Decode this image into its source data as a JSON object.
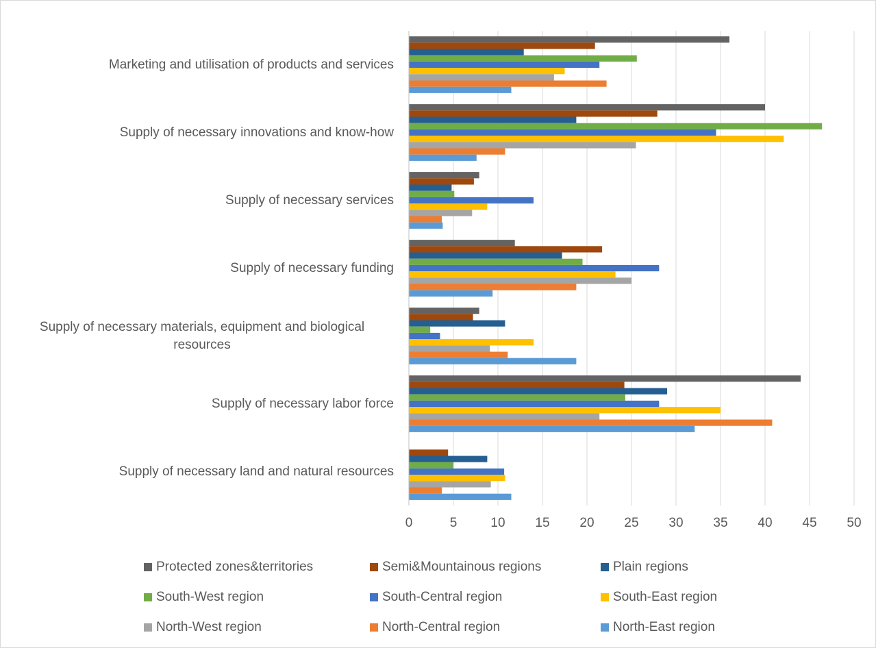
{
  "chart_data": {
    "type": "bar",
    "orientation": "horizontal",
    "categories": [
      "Marketing and utilisation of products and services",
      "Supply of necessary innovations and know-how",
      "Supply of necessary services",
      "Supply of necessary funding",
      "Supply of necessary materials, equipment and biological resources",
      "Supply of necessary labor force",
      "Supply of necessary land and natural resources"
    ],
    "series": [
      {
        "name": "Protected zones&territories",
        "color": "#636363",
        "values": [
          36,
          40,
          7.9,
          11.9,
          7.9,
          44,
          0
        ]
      },
      {
        "name": "Semi&Mountainous regions",
        "color": "#9e480e",
        "values": [
          20.9,
          27.9,
          7.3,
          21.7,
          7.2,
          24.2,
          4.4
        ]
      },
      {
        "name": "Plain regions",
        "color": "#255e91",
        "values": [
          12.9,
          18.8,
          4.8,
          17.2,
          10.8,
          29,
          8.8
        ]
      },
      {
        "name": "South-West region",
        "color": "#70ad47",
        "values": [
          25.6,
          46.4,
          5.1,
          19.5,
          2.4,
          24.3,
          5
        ]
      },
      {
        "name": "South-Central region",
        "color": "#4472c4",
        "values": [
          21.4,
          34.5,
          14,
          28.1,
          3.5,
          28.1,
          10.7
        ]
      },
      {
        "name": "South-East region",
        "color": "#ffc000",
        "values": [
          17.5,
          42.1,
          8.8,
          23.2,
          14,
          35,
          10.8
        ]
      },
      {
        "name": "North-West region",
        "color": "#a5a5a5",
        "values": [
          16.3,
          25.5,
          7.1,
          25,
          9.1,
          21.4,
          9.2
        ]
      },
      {
        "name": "North-Central region",
        "color": "#ed7d31",
        "values": [
          22.2,
          10.8,
          3.7,
          18.8,
          11.1,
          40.8,
          3.7
        ]
      },
      {
        "name": "North-East region",
        "color": "#5b9bd5",
        "values": [
          11.5,
          7.6,
          3.8,
          9.4,
          18.8,
          32.1,
          11.5
        ]
      }
    ],
    "xlim": [
      0,
      50
    ],
    "xticks": [
      0,
      5,
      10,
      15,
      20,
      25,
      30,
      35,
      40,
      45,
      50
    ],
    "grid": true,
    "legend": "bottom"
  }
}
